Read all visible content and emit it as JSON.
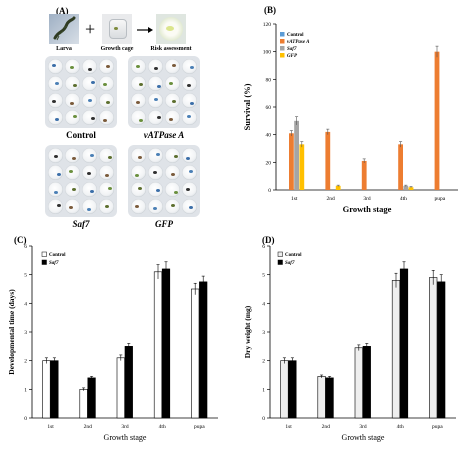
{
  "panelA": {
    "label": "(A)",
    "photos": [
      {
        "caption": "Larva"
      },
      {
        "caption": "Growth cage"
      },
      {
        "caption": "Risk assessment"
      }
    ],
    "plates": [
      {
        "caption": "Control"
      },
      {
        "caption": "vATPase A"
      },
      {
        "caption": "Saf7"
      },
      {
        "caption": "GFP"
      }
    ]
  },
  "chart_data": [
    {
      "panel": "(B)",
      "type": "bar",
      "title": "",
      "xlabel": "Growth stage",
      "ylabel": "Survival (%)",
      "ylim": [
        0,
        120
      ],
      "yticks": [
        0,
        20,
        40,
        60,
        80,
        100,
        120
      ],
      "categories": [
        "1st",
        "2nd",
        "3rd",
        "4th",
        "pupa"
      ],
      "legend_position": "top-left",
      "series": [
        {
          "name": "Control",
          "color": "#5b9bd5",
          "values": [
            0,
            0,
            0,
            0,
            0
          ],
          "errors": [
            0,
            0,
            0,
            0,
            0
          ]
        },
        {
          "name": "vATPase A",
          "color": "#ed7d31",
          "values": [
            41,
            42,
            21,
            33,
            100
          ],
          "errors": [
            2,
            2,
            1.5,
            2,
            4
          ]
        },
        {
          "name": "Saf7",
          "color": "#a5a5a5",
          "values": [
            50,
            0,
            0,
            3,
            0
          ],
          "errors": [
            3,
            0,
            0,
            0.5,
            0
          ]
        },
        {
          "name": "GFP",
          "color": "#ffc000",
          "values": [
            33,
            3,
            0,
            2,
            0
          ],
          "errors": [
            2,
            0.5,
            0,
            0.5,
            0
          ]
        }
      ]
    },
    {
      "panel": "(C)",
      "type": "bar",
      "title": "",
      "xlabel": "Growth stage",
      "ylabel": "Developmental time (days)",
      "ylim": [
        0,
        6
      ],
      "yticks": [
        0,
        1,
        2,
        3,
        4,
        5,
        6
      ],
      "categories": [
        "1st",
        "2nd",
        "3rd",
        "4th",
        "pupa"
      ],
      "legend_position": "top-left",
      "series": [
        {
          "name": "Control",
          "color": "#ffffff",
          "values": [
            2.0,
            1.0,
            2.1,
            5.1,
            4.5
          ],
          "errors": [
            0.1,
            0.05,
            0.1,
            0.25,
            0.2
          ]
        },
        {
          "name": "Saf7",
          "color": "#000000",
          "values": [
            2.0,
            1.4,
            2.5,
            5.2,
            4.75
          ],
          "errors": [
            0.1,
            0.05,
            0.1,
            0.25,
            0.2
          ]
        }
      ]
    },
    {
      "panel": "(D)",
      "type": "bar",
      "title": "",
      "xlabel": "Growth stage",
      "ylabel": "Dry weight (mg)",
      "ylim": [
        0,
        6
      ],
      "yticks": [
        0,
        1,
        2,
        3,
        4,
        5,
        6
      ],
      "categories": [
        "1st",
        "2nd",
        "3rd",
        "4th",
        "pupa"
      ],
      "legend_position": "top-left",
      "series": [
        {
          "name": "Control",
          "color": "#eeeeee",
          "values": [
            2.0,
            1.45,
            2.45,
            4.8,
            4.9
          ],
          "errors": [
            0.1,
            0.05,
            0.1,
            0.25,
            0.25
          ]
        },
        {
          "name": "Saf7",
          "color": "#000000",
          "values": [
            2.0,
            1.4,
            2.5,
            5.2,
            4.75
          ],
          "errors": [
            0.1,
            0.05,
            0.1,
            0.25,
            0.25
          ]
        }
      ]
    }
  ]
}
